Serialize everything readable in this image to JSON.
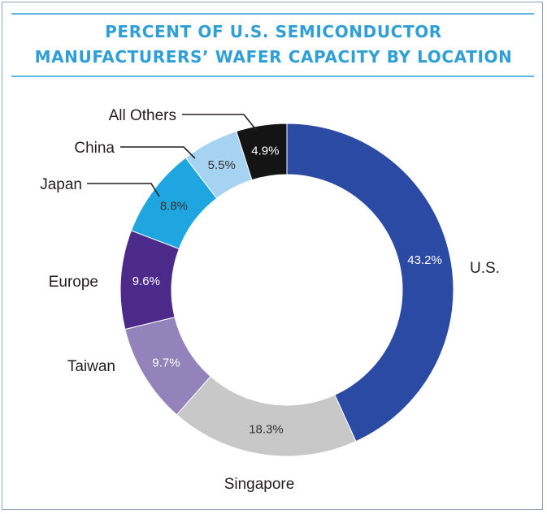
{
  "chart_data": {
    "type": "pie",
    "title_lines": [
      "PERCENT OF U.S. SEMICONDUCTOR",
      "MANUFACTURERS’ WAFER CAPACITY BY LOCATION"
    ],
    "categories": [
      "U.S.",
      "Singapore",
      "Taiwan",
      "Europe",
      "Japan",
      "China",
      "All Others"
    ],
    "values": [
      43.2,
      18.3,
      9.7,
      9.6,
      8.8,
      5.5,
      4.9
    ],
    "value_labels": [
      "43.2%",
      "18.3%",
      "9.7%",
      "9.6%",
      "8.8%",
      "5.5%",
      "4.9%"
    ],
    "colors": [
      "#2b4aa3",
      "#c8c8c8",
      "#9383ba",
      "#4b2a8a",
      "#1fa6e0",
      "#a7d3f2",
      "#141414"
    ],
    "label_colors": [
      "#ffffff",
      "#333333",
      "#ffffff",
      "#ffffff",
      "#333333",
      "#333333",
      "#ffffff"
    ],
    "donut": true,
    "start": "top, clockwise"
  }
}
